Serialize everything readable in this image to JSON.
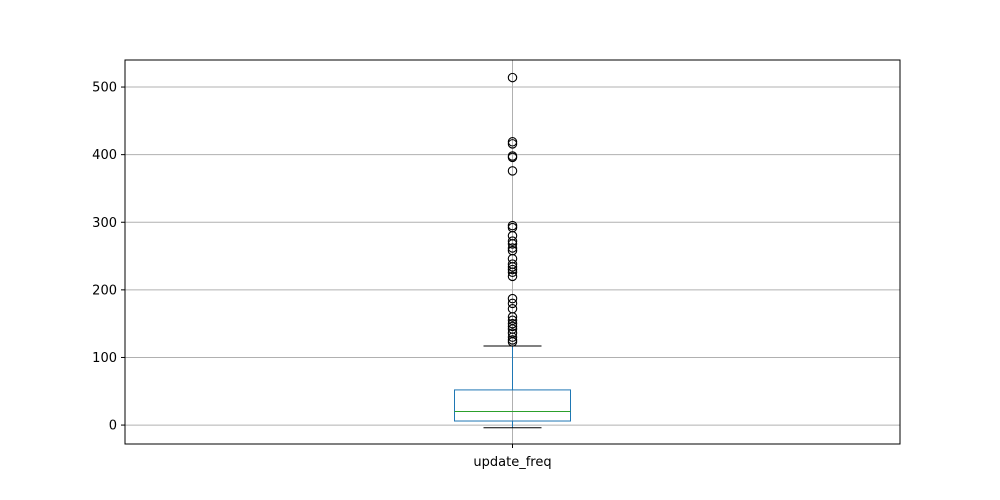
{
  "chart_data": {
    "type": "box",
    "categories": [
      "update_freq"
    ],
    "series": [
      {
        "box": {
          "whisker_low": -4,
          "q1": 6,
          "median": 20,
          "q3": 52,
          "whisker_high": 117
        },
        "outliers": [
          123,
          126,
          130,
          136,
          142,
          146,
          150,
          155,
          160,
          172,
          180,
          187,
          220,
          226,
          230,
          234,
          238,
          246,
          258,
          262,
          268,
          272,
          280,
          292,
          295,
          376,
          396,
          398,
          416,
          419,
          514
        ]
      }
    ],
    "ylim": [
      -28,
      540
    ],
    "yticks": [
      0,
      100,
      200,
      300,
      400,
      500
    ],
    "ytick_labels": [
      "0",
      "100",
      "200",
      "300",
      "400",
      "500"
    ],
    "grid": true,
    "colors": {
      "box": "#1f77b4",
      "median": "#2ca02c",
      "whisker_cap": "#000000",
      "outlier_edge": "#000000",
      "grid": "#b0b0b0",
      "axes": "#000000"
    }
  }
}
